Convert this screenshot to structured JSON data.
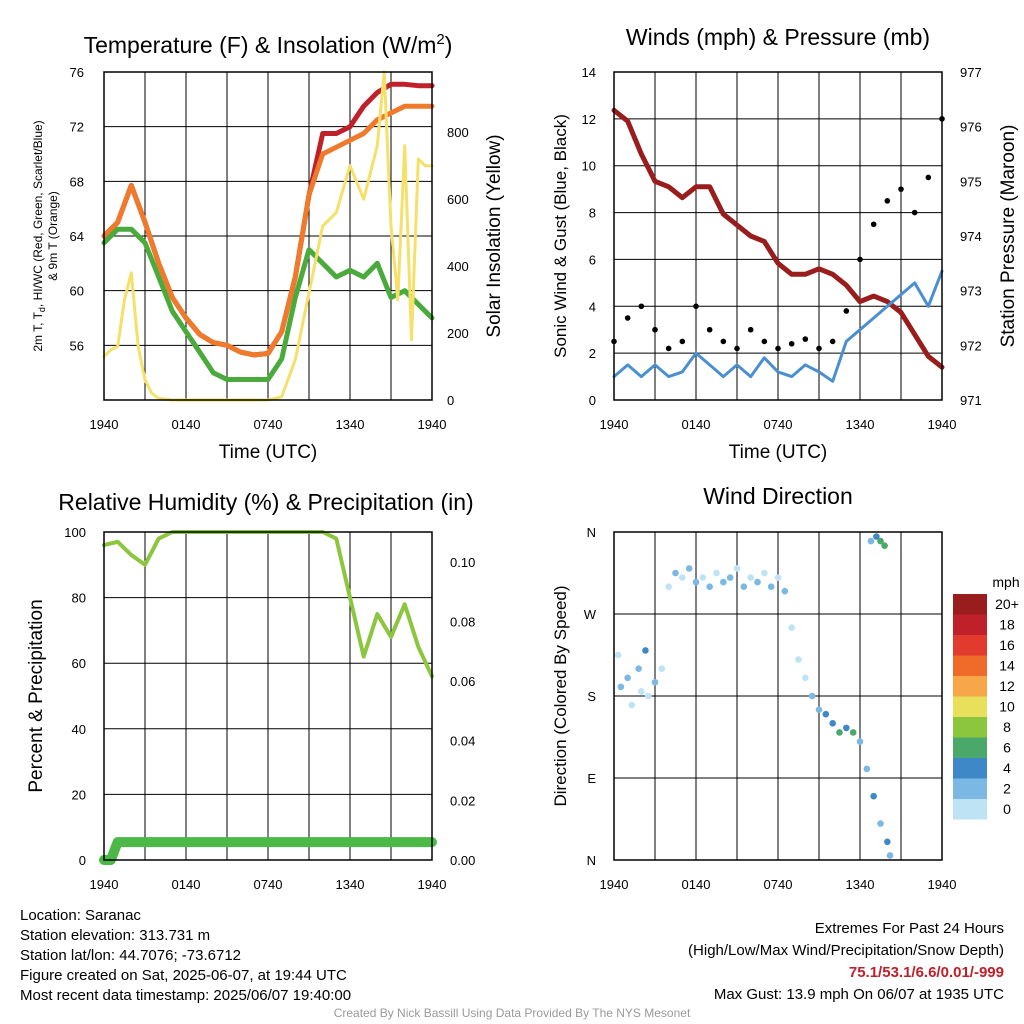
{
  "panels": {
    "temp": {
      "title_main": "Temperature (F) & Insolation (W/m",
      "title_sup": "2",
      "title_end": ")",
      "ylabel_line1": "2m T, T",
      "ylabel_sub": "d",
      "ylabel_line1_rest": ", HI/WC (Red, Green, Scarlet/Blue)",
      "ylabel_line2": "& 9m T (Orange)",
      "y2label": "Solar Insolation (Yellow)",
      "xlabel": "Time (UTC)"
    },
    "wind": {
      "title": "Winds (mph) & Pressure (mb)",
      "ylabel": "Sonic Wind & Gust (Blue, Black)",
      "y2label": "Station Pressure (Maroon)",
      "xlabel": "Time (UTC)"
    },
    "rh": {
      "title": "Relative Humidity (%) & Precipitation (in)",
      "ylabel": "Percent & Precipitation"
    },
    "dir": {
      "title": "Wind Direction",
      "ylabel": "Direction (Colored By Speed)",
      "legend_title": "mph"
    }
  },
  "chart_data": [
    {
      "type": "line",
      "id": "temp",
      "x_ticks": [
        "1940",
        "0140",
        "0740",
        "1340",
        "1940"
      ],
      "ylim": [
        52,
        76
      ],
      "y_ticks": [
        56,
        60,
        64,
        68,
        72,
        76
      ],
      "y2lim": [
        0,
        980
      ],
      "y2_ticks": [
        0,
        200,
        400,
        600,
        800
      ],
      "series": [
        {
          "color": "#c0202a",
          "width": 5,
          "x": [
            0,
            1,
            2,
            3,
            4,
            5,
            6,
            7,
            8,
            9,
            10,
            11,
            12,
            13,
            14,
            15,
            16,
            17,
            18,
            19,
            20,
            21,
            22,
            23,
            24
          ],
          "y": [
            64,
            65,
            67.7,
            65,
            62,
            59.5,
            58,
            56.8,
            56.2,
            56,
            55.5,
            55.3,
            55.4,
            57,
            61,
            67,
            71.5,
            71.5,
            72,
            73.5,
            74.5,
            75.1,
            75.1,
            75,
            75
          ]
        },
        {
          "color": "#f07a2c",
          "width": 5,
          "x": [
            0,
            1,
            2,
            3,
            4,
            5,
            6,
            7,
            8,
            9,
            10,
            11,
            12,
            13,
            14,
            15,
            16,
            17,
            18,
            19,
            20,
            21,
            22,
            23,
            24
          ],
          "y": [
            64,
            65,
            67.7,
            65,
            62,
            59.5,
            58,
            56.8,
            56.2,
            56,
            55.5,
            55.3,
            55.4,
            57,
            61,
            67,
            70,
            70.5,
            71,
            71.5,
            72.5,
            73,
            73.5,
            73.5,
            73.5
          ]
        },
        {
          "color": "#4aab3c",
          "width": 5,
          "x": [
            0,
            1,
            2,
            3,
            4,
            5,
            6,
            7,
            8,
            9,
            10,
            11,
            12,
            13,
            14,
            15,
            16,
            17,
            18,
            19,
            20,
            21,
            22,
            23,
            24
          ],
          "y": [
            63.5,
            64.5,
            64.5,
            63.5,
            61,
            58.5,
            57,
            55.5,
            54,
            53.5,
            53.5,
            53.5,
            53.5,
            55,
            59.5,
            63,
            62,
            61,
            61.5,
            61,
            62,
            59.5,
            60,
            59,
            58
          ]
        },
        {
          "color": "#f5e06a",
          "width": 3,
          "axis": "y2",
          "x": [
            0,
            0.5,
            1,
            1.5,
            2,
            2.5,
            3,
            3.5,
            4,
            5,
            6,
            7,
            8,
            9,
            10,
            11,
            12,
            13,
            14,
            15,
            16,
            17,
            18,
            19,
            20,
            20.5,
            21,
            21.5,
            22,
            22.5,
            23,
            23.5,
            24
          ],
          "y": [
            130,
            150,
            160,
            300,
            380,
            160,
            60,
            20,
            5,
            0,
            0,
            0,
            0,
            0,
            0,
            0,
            0,
            10,
            120,
            320,
            520,
            560,
            700,
            600,
            760,
            980,
            520,
            300,
            760,
            180,
            720,
            700,
            700
          ]
        }
      ]
    },
    {
      "type": "line",
      "id": "wind",
      "x_ticks": [
        "1940",
        "0140",
        "0740",
        "1340",
        "1940"
      ],
      "ylim": [
        0,
        14
      ],
      "y_ticks": [
        0,
        2,
        4,
        6,
        8,
        10,
        12,
        14
      ],
      "y2lim": [
        971,
        977
      ],
      "y2_ticks": [
        971,
        972,
        973,
        974,
        975,
        976,
        977
      ],
      "series": [
        {
          "color": "#9a1d1d",
          "width": 5,
          "axis": "y2",
          "x": [
            0,
            1,
            2,
            3,
            4,
            5,
            6,
            7,
            8,
            9,
            10,
            11,
            12,
            13,
            14,
            15,
            16,
            17,
            18,
            19,
            20,
            21,
            22,
            23,
            24
          ],
          "y": [
            976.3,
            976.1,
            975.5,
            975,
            974.9,
            974.7,
            974.9,
            974.9,
            974.4,
            974.2,
            974,
            973.9,
            973.5,
            973.3,
            973.3,
            973.4,
            973.3,
            973.1,
            972.8,
            972.9,
            972.8,
            972.6,
            972.2,
            971.8,
            971.6
          ]
        },
        {
          "color": "#4a90d0",
          "width": 3,
          "x": [
            0,
            1,
            2,
            3,
            4,
            5,
            6,
            7,
            8,
            9,
            10,
            11,
            12,
            13,
            14,
            15,
            16,
            17,
            18,
            19,
            20,
            21,
            22,
            23,
            24
          ],
          "y": [
            1,
            1.5,
            1,
            1.5,
            1,
            1.2,
            2,
            1.5,
            1,
            1.5,
            1,
            1.8,
            1.2,
            1,
            1.5,
            1.2,
            0.8,
            2.5,
            3,
            3.5,
            4,
            4.5,
            5,
            4,
            5.5
          ]
        },
        {
          "color": "#000000",
          "width": 0,
          "marker": true,
          "x": [
            0,
            1,
            2,
            3,
            4,
            5,
            6,
            7,
            8,
            9,
            10,
            11,
            12,
            13,
            14,
            15,
            16,
            17,
            18,
            19,
            20,
            21,
            22,
            23,
            24
          ],
          "y": [
            2.5,
            3.5,
            4,
            3,
            2.2,
            2.5,
            4,
            3,
            2.5,
            2.2,
            3,
            2.5,
            2.2,
            2.4,
            2.6,
            2.2,
            2.5,
            3.8,
            6,
            7.5,
            8.5,
            9,
            8,
            9.5,
            12
          ]
        }
      ]
    },
    {
      "type": "line",
      "id": "rh",
      "x_ticks": [
        "1940",
        "0140",
        "0740",
        "1340",
        "1940"
      ],
      "ylim": [
        0,
        100
      ],
      "y_ticks": [
        0,
        20,
        40,
        60,
        80,
        100
      ],
      "y2lim": [
        0,
        0.11
      ],
      "y2_ticks": [
        "0.00",
        "0.02",
        "0.04",
        "0.06",
        "0.08",
        "0.10"
      ],
      "series": [
        {
          "color": "#8cc63f",
          "width": 4,
          "x": [
            0,
            1,
            2,
            3,
            4,
            5,
            6,
            7,
            8,
            9,
            10,
            11,
            12,
            13,
            14,
            15,
            16,
            17,
            18,
            19,
            20,
            21,
            22,
            23,
            24
          ],
          "y": [
            96,
            97,
            93,
            90,
            98,
            100,
            100,
            100,
            100,
            100,
            100,
            100,
            100,
            100,
            100,
            100,
            100,
            98,
            80,
            62,
            75,
            68,
            78,
            65,
            56
          ]
        },
        {
          "color": "#4cb848",
          "width": 10,
          "axis": "y2",
          "x": [
            0,
            0.5,
            1,
            24
          ],
          "y": [
            0,
            0,
            0.006,
            0.006
          ]
        }
      ]
    },
    {
      "type": "scatter",
      "id": "dir",
      "x_ticks": [
        "1940",
        "0140",
        "0740",
        "1340",
        "1940"
      ],
      "y_ticks": [
        "N",
        "E",
        "S",
        "W",
        "N"
      ],
      "legend": [
        "20+",
        "18",
        "16",
        "14",
        "12",
        "10",
        "8",
        "6",
        "4",
        "2",
        "0"
      ],
      "legend_colors": [
        "#9a1d1d",
        "#c0202a",
        "#e23b2e",
        "#f06a2a",
        "#f7a64a",
        "#e8df5a",
        "#8cc63f",
        "#4aa86a",
        "#3f88c8",
        "#7bb8e3",
        "#bde3f5"
      ],
      "points": [
        {
          "x": 0.3,
          "y": 225,
          "c": "#bde3f5"
        },
        {
          "x": 0.5,
          "y": 190,
          "c": "#7bb8e3"
        },
        {
          "x": 1,
          "y": 200,
          "c": "#7bb8e3"
        },
        {
          "x": 1.3,
          "y": 170,
          "c": "#bde3f5"
        },
        {
          "x": 1.8,
          "y": 210,
          "c": "#7bb8e3"
        },
        {
          "x": 2,
          "y": 185,
          "c": "#bde3f5"
        },
        {
          "x": 2.3,
          "y": 230,
          "c": "#3f88c8"
        },
        {
          "x": 2.5,
          "y": 180,
          "c": "#bde3f5"
        },
        {
          "x": 3,
          "y": 195,
          "c": "#7bb8e3"
        },
        {
          "x": 3.5,
          "y": 210,
          "c": "#bde3f5"
        },
        {
          "x": 4,
          "y": 300,
          "c": "#bde3f5"
        },
        {
          "x": 4.5,
          "y": 315,
          "c": "#7bb8e3"
        },
        {
          "x": 5,
          "y": 310,
          "c": "#bde3f5"
        },
        {
          "x": 5.5,
          "y": 320,
          "c": "#7bb8e3"
        },
        {
          "x": 6,
          "y": 305,
          "c": "#7bb8e3"
        },
        {
          "x": 6.5,
          "y": 310,
          "c": "#bde3f5"
        },
        {
          "x": 7,
          "y": 300,
          "c": "#7bb8e3"
        },
        {
          "x": 7.5,
          "y": 315,
          "c": "#bde3f5"
        },
        {
          "x": 8,
          "y": 305,
          "c": "#7bb8e3"
        },
        {
          "x": 8.5,
          "y": 310,
          "c": "#7bb8e3"
        },
        {
          "x": 9,
          "y": 320,
          "c": "#bde3f5"
        },
        {
          "x": 9.5,
          "y": 300,
          "c": "#7bb8e3"
        },
        {
          "x": 10,
          "y": 310,
          "c": "#bde3f5"
        },
        {
          "x": 10.5,
          "y": 305,
          "c": "#7bb8e3"
        },
        {
          "x": 11,
          "y": 315,
          "c": "#bde3f5"
        },
        {
          "x": 11.5,
          "y": 300,
          "c": "#7bb8e3"
        },
        {
          "x": 12,
          "y": 310,
          "c": "#bde3f5"
        },
        {
          "x": 12.5,
          "y": 295,
          "c": "#7bb8e3"
        },
        {
          "x": 13,
          "y": 255,
          "c": "#bde3f5"
        },
        {
          "x": 13.5,
          "y": 220,
          "c": "#bde3f5"
        },
        {
          "x": 14,
          "y": 200,
          "c": "#bde3f5"
        },
        {
          "x": 14.5,
          "y": 180,
          "c": "#7bb8e3"
        },
        {
          "x": 15,
          "y": 165,
          "c": "#7bb8e3"
        },
        {
          "x": 15.5,
          "y": 160,
          "c": "#3f88c8"
        },
        {
          "x": 16,
          "y": 150,
          "c": "#3f88c8"
        },
        {
          "x": 16.5,
          "y": 140,
          "c": "#4aa86a"
        },
        {
          "x": 17,
          "y": 145,
          "c": "#3f88c8"
        },
        {
          "x": 17.5,
          "y": 140,
          "c": "#4aa86a"
        },
        {
          "x": 18,
          "y": 130,
          "c": "#7bb8e3"
        },
        {
          "x": 18.5,
          "y": 100,
          "c": "#7bb8e3"
        },
        {
          "x": 19,
          "y": 70,
          "c": "#3f88c8"
        },
        {
          "x": 19.5,
          "y": 40,
          "c": "#7bb8e3"
        },
        {
          "x": 20,
          "y": 20,
          "c": "#3f88c8"
        },
        {
          "x": 20.2,
          "y": 5,
          "c": "#7bb8e3"
        },
        {
          "x": 19.2,
          "y": 355,
          "c": "#3f88c8"
        },
        {
          "x": 19.5,
          "y": 350,
          "c": "#4aa86a"
        },
        {
          "x": 19.8,
          "y": 345,
          "c": "#4aa86a"
        },
        {
          "x": 18.8,
          "y": 350,
          "c": "#7bb8e3"
        }
      ]
    }
  ],
  "footer": {
    "location": "Location: Saranac",
    "elevation": "Station elevation: 313.731 m",
    "latlon": "Station lat/lon: 44.7076; -73.6712",
    "created": "Figure created on Sat, 2025-06-07, at 19:44 UTC",
    "recent": "Most recent data timestamp: 2025/06/07 19:40:00",
    "extremes_title": "Extremes For Past 24 Hours",
    "extremes_sub": "(High/Low/Max Wind/Precipitation/Snow Depth)",
    "extremes_values": "75.1/53.1/6.6/0.01/-999",
    "max_gust": "Max Gust: 13.9 mph On 06/07 at 1935 UTC",
    "credit": "Created By Nick Bassill Using Data Provided By The NYS Mesonet"
  },
  "colors": {
    "extremes": "#c0202a"
  }
}
